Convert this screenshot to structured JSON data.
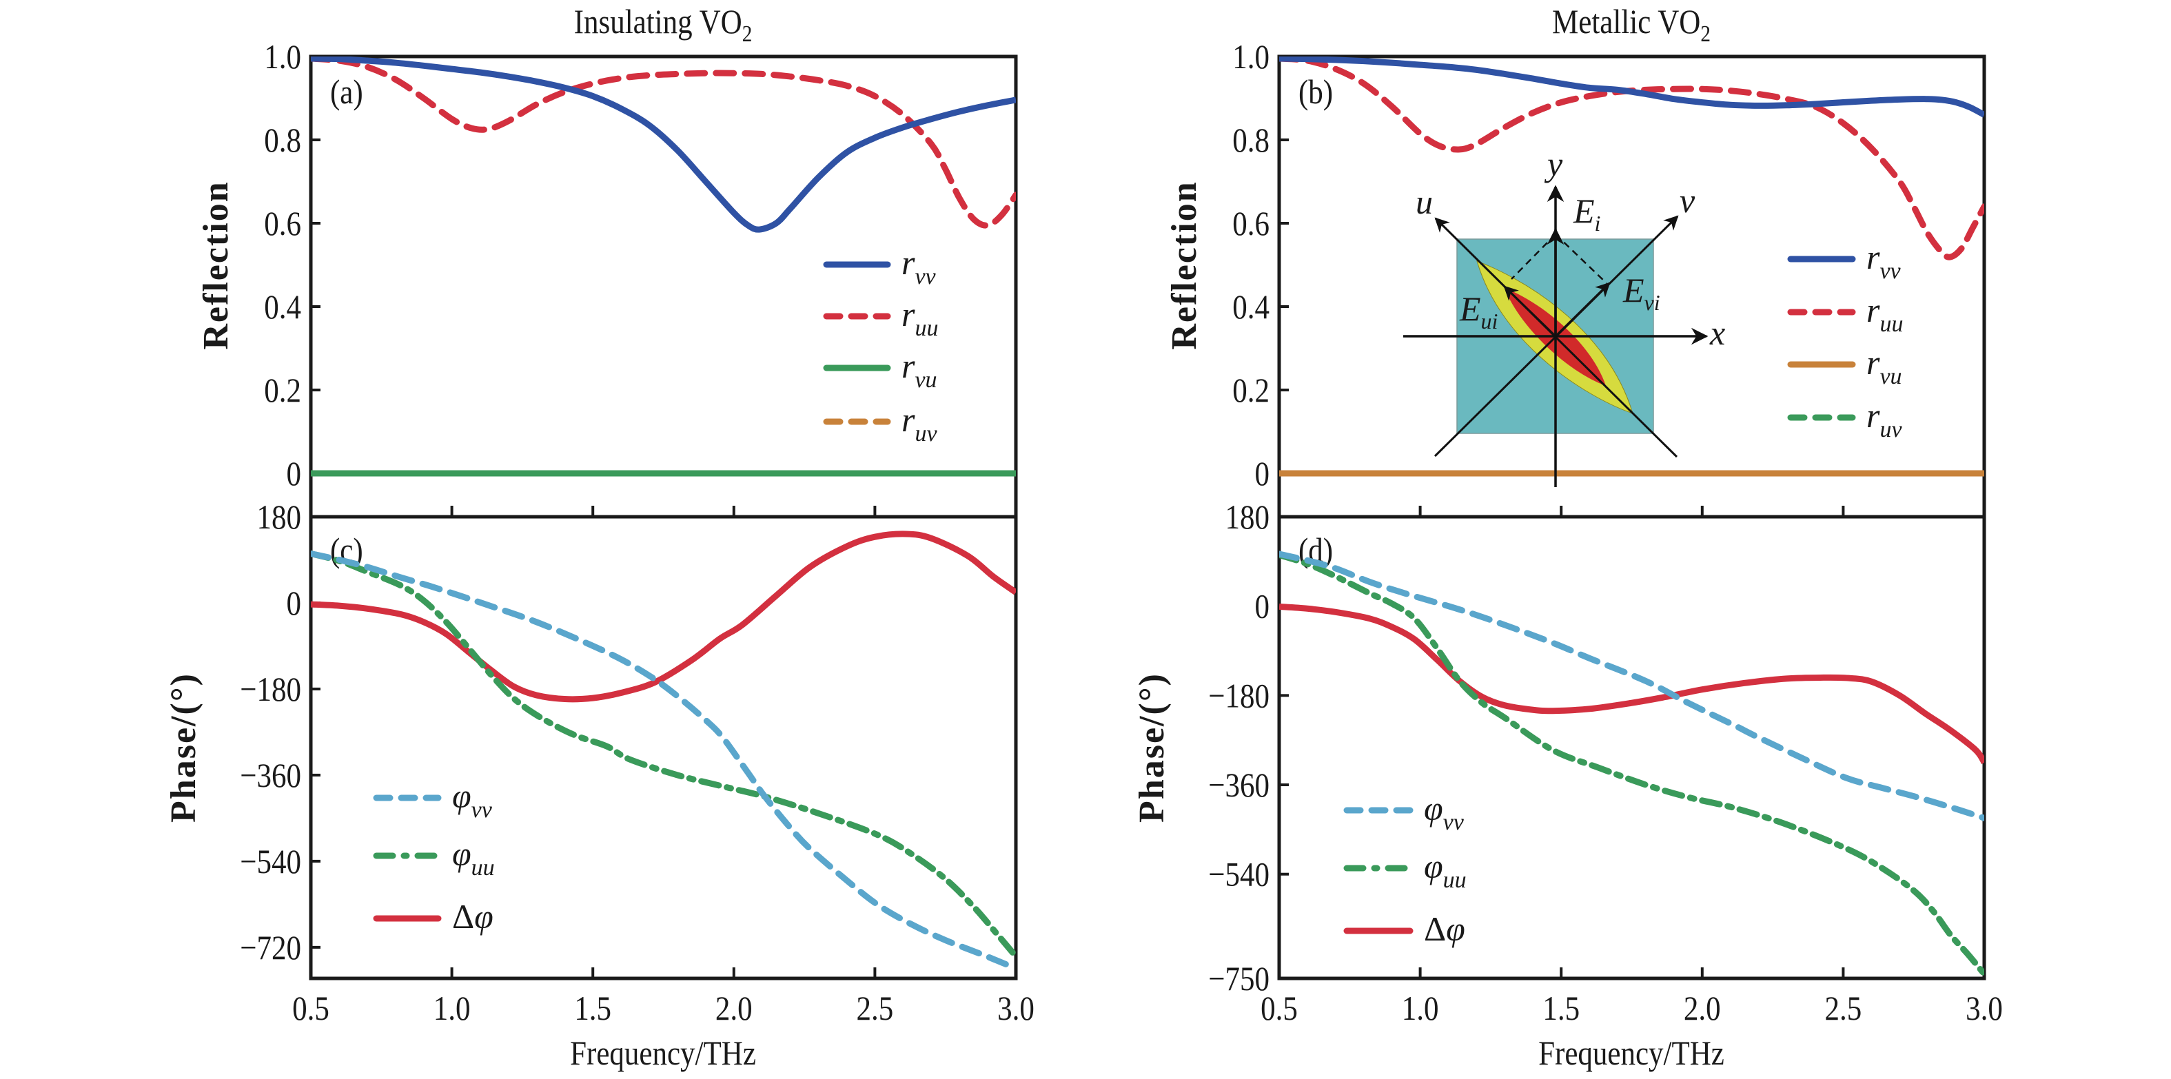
{
  "figure": {
    "titles": {
      "left": "Insulating VO",
      "right": "Metallic VO",
      "subscript": "2"
    },
    "reflection_ylabel": "Reflection",
    "phase_ylabel": "Phase/(°)",
    "xlabel": "Frequency/THz",
    "colors": {
      "blue": "#2f52a4",
      "red": "#d3303f",
      "green": "#3a9a5a",
      "orange": "#c8823a",
      "lightblue": "#5aa6cc",
      "inset_teal": "#6ab9bf",
      "inset_yellow": "#d6db3e",
      "inset_red": "#d12a2a"
    },
    "inset": {
      "labels": {
        "y": "y",
        "x": "x",
        "u": "u",
        "v": "v",
        "Ei": "E",
        "Ei_sub": "i",
        "Eui": "E",
        "Eui_sub": "ui",
        "Evi": "E",
        "Evi_sub": "vi"
      }
    }
  },
  "chart_data": [
    {
      "panel": "(a)",
      "type": "line",
      "title": "Insulating VO2",
      "xlabel": "",
      "ylabel": "Reflection",
      "xlim": [
        0.5,
        3.0
      ],
      "ylim": [
        0,
        1.0
      ],
      "xticks": [
        0.5,
        1.0,
        1.5,
        2.0,
        2.5,
        3.0
      ],
      "yticks": [
        0,
        0.2,
        0.4,
        0.6,
        0.8,
        1.0
      ],
      "ytick_labels": [
        "0",
        "0.2",
        "0.4",
        "0.6",
        "0.8",
        "1.0"
      ],
      "legend_position": "center-right",
      "series": [
        {
          "name": "r",
          "sub": "vv",
          "color": "blue",
          "style": "solid",
          "x": [
            0.5,
            0.6,
            0.7,
            0.8,
            0.9,
            1.0,
            1.1,
            1.2,
            1.3,
            1.4,
            1.5,
            1.6,
            1.7,
            1.8,
            1.9,
            2.0,
            2.05,
            2.09,
            2.15,
            2.2,
            2.3,
            2.4,
            2.5,
            2.6,
            2.7,
            2.8,
            2.9,
            3.0
          ],
          "y": [
            0.995,
            0.994,
            0.99,
            0.985,
            0.978,
            0.97,
            0.962,
            0.952,
            0.94,
            0.925,
            0.905,
            0.875,
            0.835,
            0.775,
            0.7,
            0.625,
            0.595,
            0.585,
            0.6,
            0.635,
            0.71,
            0.77,
            0.805,
            0.83,
            0.85,
            0.868,
            0.883,
            0.896
          ]
        },
        {
          "name": "r",
          "sub": "uu",
          "color": "red",
          "style": "dash",
          "x": [
            0.5,
            0.6,
            0.7,
            0.8,
            0.9,
            1.0,
            1.07,
            1.13,
            1.2,
            1.3,
            1.4,
            1.5,
            1.6,
            1.7,
            1.8,
            1.9,
            2.0,
            2.1,
            2.2,
            2.3,
            2.4,
            2.5,
            2.6,
            2.7,
            2.75,
            2.8,
            2.85,
            2.9,
            2.95,
            3.0
          ],
          "y": [
            0.995,
            0.99,
            0.975,
            0.945,
            0.9,
            0.85,
            0.828,
            0.826,
            0.845,
            0.885,
            0.915,
            0.935,
            0.948,
            0.955,
            0.958,
            0.96,
            0.96,
            0.958,
            0.952,
            0.943,
            0.93,
            0.905,
            0.86,
            0.79,
            0.73,
            0.66,
            0.61,
            0.595,
            0.62,
            0.668
          ]
        },
        {
          "name": "r",
          "sub": "vu",
          "color": "green",
          "style": "solid",
          "x": [
            0.5,
            3.0
          ],
          "y": [
            0.0,
            0.0
          ]
        },
        {
          "name": "r",
          "sub": "uv",
          "color": "orange",
          "style": "dash",
          "x": [
            0.5,
            3.0
          ],
          "y": [
            0.0,
            0.0
          ]
        }
      ]
    },
    {
      "panel": "(b)",
      "type": "line",
      "title": "Metallic VO2",
      "xlabel": "",
      "ylabel": "Reflection",
      "xlim": [
        0.5,
        3.0
      ],
      "ylim": [
        0,
        1.0
      ],
      "xticks": [
        0.5,
        1.0,
        1.5,
        2.0,
        2.5,
        3.0
      ],
      "yticks": [
        0,
        0.2,
        0.4,
        0.6,
        0.8,
        1.0
      ],
      "ytick_labels": [
        "0",
        "0.2",
        "0.4",
        "0.6",
        "0.8",
        "1.0"
      ],
      "legend_position": "center-right",
      "series": [
        {
          "name": "r",
          "sub": "vv",
          "color": "blue",
          "style": "solid",
          "x": [
            0.5,
            0.6,
            0.7,
            0.8,
            0.9,
            1.0,
            1.1,
            1.2,
            1.3,
            1.4,
            1.5,
            1.6,
            1.7,
            1.8,
            1.9,
            2.0,
            2.1,
            2.2,
            2.3,
            2.4,
            2.5,
            2.6,
            2.7,
            2.8,
            2.85,
            2.9,
            2.95,
            3.0
          ],
          "y": [
            0.995,
            0.994,
            0.992,
            0.989,
            0.985,
            0.98,
            0.975,
            0.968,
            0.958,
            0.947,
            0.935,
            0.925,
            0.92,
            0.91,
            0.898,
            0.89,
            0.884,
            0.882,
            0.883,
            0.886,
            0.89,
            0.894,
            0.897,
            0.898,
            0.896,
            0.89,
            0.878,
            0.86
          ]
        },
        {
          "name": "r",
          "sub": "uu",
          "color": "red",
          "style": "dash",
          "x": [
            0.5,
            0.6,
            0.7,
            0.8,
            0.9,
            1.0,
            1.07,
            1.14,
            1.2,
            1.3,
            1.4,
            1.5,
            1.6,
            1.7,
            1.8,
            1.9,
            2.0,
            2.1,
            2.2,
            2.3,
            2.4,
            2.5,
            2.6,
            2.7,
            2.75,
            2.8,
            2.85,
            2.88,
            2.92,
            2.96,
            3.0
          ],
          "y": [
            0.995,
            0.99,
            0.97,
            0.935,
            0.88,
            0.815,
            0.785,
            0.777,
            0.79,
            0.83,
            0.865,
            0.89,
            0.905,
            0.915,
            0.92,
            0.922,
            0.922,
            0.918,
            0.91,
            0.898,
            0.88,
            0.84,
            0.78,
            0.7,
            0.64,
            0.575,
            0.53,
            0.519,
            0.54,
            0.59,
            0.64
          ]
        },
        {
          "name": "r",
          "sub": "vu",
          "color": "orange",
          "style": "solid",
          "x": [
            0.5,
            3.0
          ],
          "y": [
            0.0,
            0.0
          ]
        },
        {
          "name": "r",
          "sub": "uv",
          "color": "green",
          "style": "dash",
          "x": [
            0.5,
            3.0
          ],
          "y": [
            0.0,
            0.0
          ]
        }
      ]
    },
    {
      "panel": "(c)",
      "type": "line",
      "title": "",
      "xlabel": "Frequency/THz",
      "ylabel": "Phase/(°)",
      "xlim": [
        0.5,
        3.0
      ],
      "ylim": [
        -785,
        180
      ],
      "xticks": [
        0.5,
        1.0,
        1.5,
        2.0,
        2.5,
        3.0
      ],
      "xtick_labels": [
        "0.5",
        "1.0",
        "1.5",
        "2.0",
        "2.5",
        "3.0"
      ],
      "yticks": [
        180,
        0,
        -180,
        -360,
        -540,
        -720
      ],
      "ytick_labels": [
        "180",
        "0",
        "−180",
        "−360",
        "−540",
        "−720"
      ],
      "legend_position": "lower-left",
      "series": [
        {
          "name": "φ",
          "sub": "vv",
          "color": "lightblue",
          "style": "dash",
          "x": [
            0.5,
            0.6,
            0.7,
            0.82,
            0.95,
            1.14,
            1.3,
            1.47,
            1.6,
            1.71,
            1.8,
            1.9,
            1.96,
            2.05,
            2.11,
            2.2,
            2.27,
            2.4,
            2.51,
            2.63,
            2.75,
            2.88,
            3.0
          ],
          "y": [
            103,
            90,
            75,
            53,
            30,
            -7,
            -40,
            -82,
            -118,
            -156,
            -195,
            -245,
            -281,
            -355,
            -405,
            -470,
            -514,
            -580,
            -631,
            -672,
            -705,
            -735,
            -764
          ]
        },
        {
          "name": "φ",
          "sub": "uu",
          "color": "green",
          "style": "dashdot",
          "x": [
            0.5,
            0.6,
            0.7,
            0.82,
            0.9,
            0.98,
            1.06,
            1.14,
            1.22,
            1.31,
            1.43,
            1.55,
            1.63,
            1.8,
            1.95,
            2.11,
            2.3,
            2.51,
            2.63,
            2.75,
            2.85,
            2.93,
            3.0
          ],
          "y": [
            103,
            88,
            65,
            36,
            5,
            -40,
            -95,
            -151,
            -200,
            -238,
            -275,
            -300,
            -327,
            -360,
            -382,
            -405,
            -440,
            -485,
            -525,
            -577,
            -635,
            -690,
            -739
          ]
        },
        {
          "name": "Δφ",
          "sub": "",
          "color": "red",
          "style": "solid",
          "x": [
            0.5,
            0.6,
            0.7,
            0.82,
            0.9,
            0.98,
            1.06,
            1.14,
            1.22,
            1.3,
            1.4,
            1.5,
            1.6,
            1.72,
            1.85,
            1.95,
            2.03,
            2.15,
            2.27,
            2.4,
            2.5,
            2.61,
            2.7,
            2.83,
            2.92,
            3.0
          ],
          "y": [
            -3,
            -6,
            -12,
            -24,
            -40,
            -65,
            -103,
            -141,
            -175,
            -193,
            -201,
            -199,
            -188,
            -166,
            -120,
            -75,
            -46,
            15,
            75,
            118,
            138,
            144,
            135,
            98,
            55,
            22
          ]
        }
      ]
    },
    {
      "panel": "(d)",
      "type": "line",
      "title": "",
      "xlabel": "Frequency/THz",
      "ylabel": "Phase/(°)",
      "xlim": [
        0.5,
        3.0
      ],
      "ylim": [
        -750,
        180
      ],
      "xticks": [
        0.5,
        1.0,
        1.5,
        2.0,
        2.5,
        3.0
      ],
      "xtick_labels": [
        "0.5",
        "1.0",
        "1.5",
        "2.0",
        "2.5",
        "3.0"
      ],
      "yticks": [
        180,
        0,
        -180,
        -360,
        -540,
        -750
      ],
      "ytick_labels": [
        "180",
        "0",
        "−180",
        "−360",
        "−540",
        "−750"
      ],
      "legend_position": "lower-left",
      "series": [
        {
          "name": "φ",
          "sub": "vv",
          "color": "lightblue",
          "style": "dash",
          "x": [
            0.5,
            0.6,
            0.7,
            0.82,
            0.95,
            1.14,
            1.3,
            1.47,
            1.6,
            1.8,
            1.95,
            2.11,
            2.19,
            2.35,
            2.51,
            2.63,
            2.75,
            2.88,
            3.0
          ],
          "y": [
            105,
            92,
            76,
            49,
            25,
            -7,
            -38,
            -74,
            -105,
            -151,
            -195,
            -239,
            -262,
            -305,
            -346,
            -365,
            -383,
            -405,
            -427
          ]
        },
        {
          "name": "φ",
          "sub": "uu",
          "color": "green",
          "style": "dashdot",
          "x": [
            0.5,
            0.6,
            0.7,
            0.82,
            0.9,
            0.98,
            1.06,
            1.14,
            1.22,
            1.3,
            1.47,
            1.63,
            1.8,
            1.95,
            2.11,
            2.3,
            2.51,
            2.63,
            2.75,
            2.82,
            2.88,
            2.94,
            3.0
          ],
          "y": [
            103,
            85,
            60,
            26,
            5,
            -25,
            -85,
            -151,
            -195,
            -225,
            -290,
            -325,
            -360,
            -385,
            -406,
            -440,
            -488,
            -525,
            -573,
            -615,
            -662,
            -700,
            -741
          ]
        },
        {
          "name": "Δφ",
          "sub": "",
          "color": "red",
          "style": "solid",
          "x": [
            0.5,
            0.6,
            0.7,
            0.82,
            0.9,
            0.98,
            1.06,
            1.14,
            1.22,
            1.3,
            1.4,
            1.47,
            1.6,
            1.75,
            1.87,
            2.0,
            2.15,
            2.3,
            2.43,
            2.52,
            2.6,
            2.7,
            2.79,
            2.88,
            2.97,
            3.0
          ],
          "y": [
            -1,
            -5,
            -12,
            -25,
            -42,
            -67,
            -108,
            -151,
            -183,
            -200,
            -209,
            -211,
            -207,
            -195,
            -183,
            -168,
            -155,
            -146,
            -144,
            -145,
            -152,
            -180,
            -216,
            -250,
            -290,
            -315
          ]
        }
      ]
    }
  ]
}
